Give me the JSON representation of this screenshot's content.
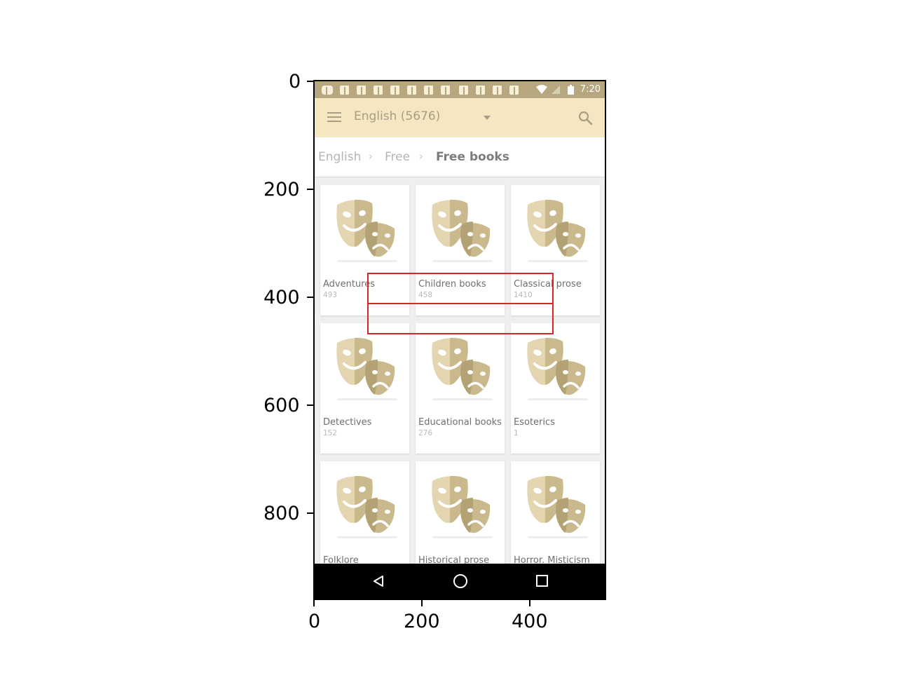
{
  "axes": {
    "y_ticks": [
      "0",
      "200",
      "400",
      "600",
      "800"
    ],
    "x_ticks": [
      "0",
      "200",
      "400"
    ]
  },
  "status_bar": {
    "time": "7:20",
    "icon": "facebook-notification-icon",
    "color": "#b6a77f"
  },
  "app_bar": {
    "title": "English (5676)",
    "menu_icon": "hamburger-menu-icon",
    "search_icon": "search-icon",
    "color": "#f4e7c1"
  },
  "breadcrumb": {
    "items": [
      "English",
      "Free",
      "Free books"
    ]
  },
  "categories": [
    {
      "title": "Adventures",
      "count": "493"
    },
    {
      "title": "Children books",
      "count": "458"
    },
    {
      "title": "Classical prose",
      "count": "1410"
    },
    {
      "title": "Detectives",
      "count": "152"
    },
    {
      "title": "Educational books",
      "count": "276"
    },
    {
      "title": "Esoterics",
      "count": "1"
    },
    {
      "title": "Folklore",
      "count": ""
    },
    {
      "title": "Historical prose",
      "count": ""
    },
    {
      "title": "Horror. Misticism",
      "count": ""
    }
  ],
  "category_icon": "theater-masks-icon",
  "mask_color": "#d9cba1",
  "highlight_color": "#d62728"
}
